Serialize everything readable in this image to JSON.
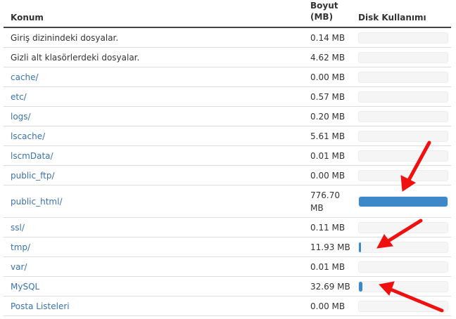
{
  "headers": {
    "location": "Konum",
    "size_line1": "Boyut",
    "size_line2": "(MB)",
    "disk": "Disk Kullanımı"
  },
  "rows": [
    {
      "name": "Giriş dizinindeki dosyalar.",
      "size": "0.14 MB",
      "mb": 0.14,
      "link": false
    },
    {
      "name": "Gizli alt klasörlerdeki dosyalar.",
      "size": "4.62 MB",
      "mb": 4.62,
      "link": false
    },
    {
      "name": "cache/",
      "size": "0.00 MB",
      "mb": 0,
      "link": true
    },
    {
      "name": "etc/",
      "size": "0.57 MB",
      "mb": 0.57,
      "link": true
    },
    {
      "name": "logs/",
      "size": "0.20 MB",
      "mb": 0.2,
      "link": true
    },
    {
      "name": "lscache/",
      "size": "5.61 MB",
      "mb": 5.61,
      "link": true
    },
    {
      "name": "lscmData/",
      "size": "0.01 MB",
      "mb": 0.01,
      "link": true
    },
    {
      "name": "public_ftp/",
      "size": "0.00 MB",
      "mb": 0,
      "link": true
    },
    {
      "name": "public_html/",
      "size": "776.70 MB",
      "mb": 776.7,
      "link": true
    },
    {
      "name": "ssl/",
      "size": "0.11 MB",
      "mb": 0.11,
      "link": true
    },
    {
      "name": "tmp/",
      "size": "11.93 MB",
      "mb": 11.93,
      "link": true
    },
    {
      "name": "var/",
      "size": "0.01 MB",
      "mb": 0.01,
      "link": true
    },
    {
      "name": "MySQL",
      "size": "32.69 MB",
      "mb": 32.69,
      "link": true
    },
    {
      "name": "Posta Listeleri",
      "size": "0.00 MB",
      "mb": 0,
      "link": true
    }
  ],
  "colors": {
    "bar_fill": "#3d88c8",
    "link": "#3a72ad",
    "annotation_arrow": "#f01010"
  }
}
